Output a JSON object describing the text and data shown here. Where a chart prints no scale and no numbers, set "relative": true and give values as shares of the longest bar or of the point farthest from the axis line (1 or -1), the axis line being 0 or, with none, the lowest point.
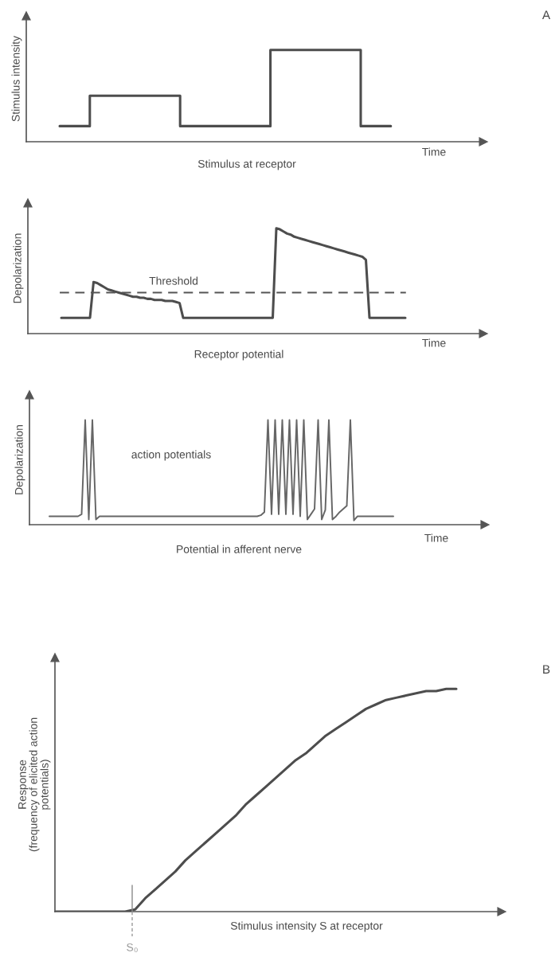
{
  "chart_data": [
    {
      "type": "step",
      "title": "Stimulus at receptor",
      "xlabel": "Time",
      "ylabel": "Stimulus intensity",
      "relative": true,
      "annotations": [
        "A"
      ],
      "categories": [
        null,
        null,
        null,
        null,
        null,
        null,
        null,
        null,
        null,
        null,
        null,
        null
      ],
      "series": [
        {
          "color": "#4d4d4d",
          "values": [
            0.17,
            0.5,
            0.5,
            0.5,
            0.17,
            0.17,
            0.17,
            1,
            1,
            1,
            0.17,
            0.17
          ]
        }
      ]
    },
    {
      "type": "line",
      "title": "Receptor potential",
      "xlabel": "Time",
      "ylabel": "Depolarization",
      "relative": true,
      "ref_lines": [
        {
          "axis": "y",
          "value": 0.39,
          "label": "Threshold",
          "color": "#555555",
          "line_style": "dashed"
        }
      ],
      "categories": [
        null,
        null,
        null,
        null,
        null,
        null,
        null,
        null,
        null,
        null,
        null,
        null,
        null,
        null,
        null,
        null,
        null,
        null,
        null,
        null,
        null,
        null,
        null,
        null,
        null,
        null,
        null,
        null,
        null,
        null,
        null,
        null,
        null,
        null,
        null,
        null,
        null,
        null,
        null,
        null,
        null,
        null,
        null,
        null,
        null,
        null,
        null,
        null,
        null,
        null,
        null,
        null,
        null,
        null,
        null,
        null,
        null,
        null,
        null,
        null,
        null,
        null,
        null,
        null,
        null,
        null,
        null,
        null,
        null,
        null,
        null,
        null,
        null,
        null,
        null,
        null,
        null,
        null,
        null,
        null,
        null,
        null,
        null,
        null,
        null,
        null,
        null,
        null,
        null,
        null,
        null,
        null,
        null,
        null,
        null,
        null,
        null
      ],
      "series": [
        {
          "color": "#4d4d4d",
          "values": [
            0.15,
            0.15,
            0.15,
            0.15,
            0.15,
            0.15,
            0.15,
            0.15,
            0.15,
            0.49,
            0.48,
            0.46,
            0.44,
            0.42,
            0.41,
            0.4,
            0.39,
            0.38,
            0.37,
            0.36,
            0.35,
            0.35,
            0.34,
            0.34,
            0.33,
            0.33,
            0.32,
            0.32,
            0.32,
            0.31,
            0.31,
            0.31,
            0.3,
            0.29,
            0.15,
            0.15,
            0.15,
            0.15,
            0.15,
            0.15,
            0.15,
            0.15,
            0.15,
            0.15,
            0.15,
            0.15,
            0.15,
            0.15,
            0.15,
            0.15,
            0.15,
            0.15,
            0.15,
            0.15,
            0.15,
            0.15,
            0.15,
            0.15,
            0.15,
            0.15,
            1.0,
            0.99,
            0.97,
            0.95,
            0.94,
            0.92,
            0.91,
            0.9,
            0.89,
            0.88,
            0.87,
            0.86,
            0.85,
            0.84,
            0.83,
            0.82,
            0.81,
            0.8,
            0.79,
            0.78,
            0.77,
            0.76,
            0.75,
            0.74,
            0.73,
            0.7,
            0.15,
            0.15,
            0.15,
            0.15,
            0.15,
            0.15,
            0.15,
            0.15,
            0.15,
            0.15,
            0.15
          ]
        }
      ]
    },
    {
      "type": "line",
      "title": "Potential in afferent nerve",
      "xlabel": "Time",
      "ylabel": "Depolarization",
      "relative": true,
      "annotations": [
        "action potentials"
      ],
      "categories": [
        null,
        null,
        null,
        null,
        null,
        null,
        null,
        null,
        null,
        null,
        null,
        null,
        null,
        null,
        null,
        null,
        null,
        null,
        null,
        null,
        null,
        null,
        null,
        null,
        null,
        null,
        null,
        null,
        null,
        null,
        null,
        null,
        null,
        null,
        null,
        null,
        null,
        null,
        null,
        null,
        null,
        null,
        null,
        null,
        null,
        null,
        null,
        null,
        null,
        null,
        null,
        null,
        null,
        null,
        null,
        null,
        null,
        null,
        null,
        null,
        null,
        null,
        null,
        null,
        null,
        null,
        null,
        null,
        null,
        null,
        null,
        null,
        null,
        null,
        null,
        null,
        null,
        null,
        null,
        null,
        null,
        null,
        null,
        null,
        null,
        null,
        null,
        null,
        null,
        null,
        null,
        null,
        null,
        null,
        null,
        null,
        null
      ],
      "series": [
        {
          "color": "#666666",
          "values": [
            0.08,
            0.08,
            0.08,
            0.08,
            0.08,
            0.08,
            0.08,
            0.08,
            0.08,
            0.1,
            1,
            0.05,
            1,
            0.05,
            0.08,
            0.08,
            0.08,
            0.08,
            0.08,
            0.08,
            0.08,
            0.08,
            0.08,
            0.08,
            0.08,
            0.08,
            0.08,
            0.08,
            0.08,
            0.08,
            0.08,
            0.08,
            0.08,
            0.08,
            0.08,
            0.08,
            0.08,
            0.08,
            0.08,
            0.08,
            0.08,
            0.08,
            0.08,
            0.08,
            0.08,
            0.08,
            0.08,
            0.08,
            0.08,
            0.08,
            0.08,
            0.08,
            0.08,
            0.08,
            0.08,
            0.08,
            0.08,
            0.08,
            0.08,
            0.09,
            0.12,
            1,
            0.1,
            1,
            0.1,
            1,
            0.1,
            1,
            0.1,
            1,
            0.08,
            1,
            0.05,
            0.1,
            0.15,
            1,
            0.05,
            0.14,
            1,
            0.05,
            0.08,
            0.12,
            0.15,
            0.18,
            1,
            0.04,
            0.08,
            0.08,
            0.08,
            0.08,
            0.08,
            0.08,
            0.08,
            0.08,
            0.08,
            0.08,
            0.08
          ]
        }
      ]
    },
    {
      "type": "line",
      "xlabel": "Stimulus intensity S at receptor",
      "ylabel": "Response\n(frequency of elicited action\npotentials)",
      "relative": true,
      "annotations": [
        "B",
        "S₀"
      ],
      "categories": [
        null,
        null,
        null,
        null,
        null,
        null,
        null,
        null,
        null,
        null,
        null,
        null,
        null,
        null,
        null,
        null,
        null,
        null,
        null,
        null,
        null,
        null,
        null,
        null,
        null,
        null,
        null,
        null,
        null,
        null,
        null,
        null,
        null,
        null,
        null,
        null,
        null,
        null,
        null,
        null,
        null
      ],
      "series": [
        {
          "color": "#4d4d4d",
          "values": [
            0,
            0,
            0,
            0,
            0,
            0,
            0,
            0,
            0.01,
            0.06,
            0.1,
            0.14,
            0.18,
            0.23,
            0.27,
            0.31,
            0.35,
            0.39,
            0.43,
            0.48,
            0.52,
            0.56,
            0.6,
            0.64,
            0.68,
            0.71,
            0.75,
            0.79,
            0.82,
            0.85,
            0.88,
            0.91,
            0.93,
            0.95,
            0.96,
            0.97,
            0.98,
            0.99,
            0.99,
            1.0,
            1.0
          ]
        }
      ]
    }
  ]
}
